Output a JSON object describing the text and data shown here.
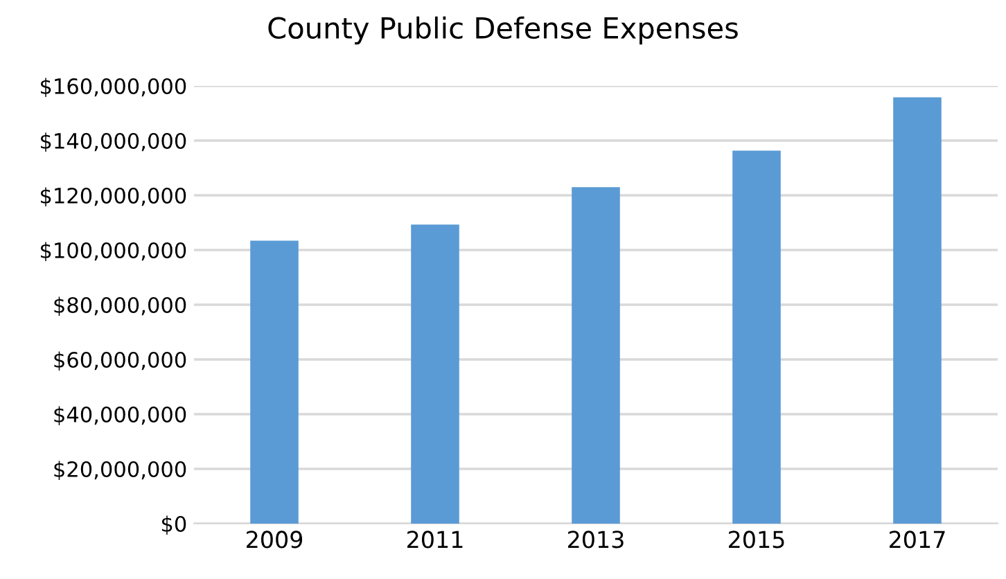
{
  "chart_data": {
    "type": "bar",
    "title": "County Public Defense Expenses",
    "categories": [
      "2009",
      "2011",
      "2013",
      "2015",
      "2017"
    ],
    "values": [
      103400000,
      109300000,
      123000000,
      136300000,
      155800000
    ],
    "color": "#5b9bd5",
    "ylim": [
      0,
      160000000
    ],
    "yticks": [
      {
        "value": 0,
        "label": "$0"
      },
      {
        "value": 20000000,
        "label": "$20,000,000"
      },
      {
        "value": 40000000,
        "label": "$40,000,000"
      },
      {
        "value": 60000000,
        "label": "$60,000,000"
      },
      {
        "value": 80000000,
        "label": "$80,000,000"
      },
      {
        "value": 100000000,
        "label": "$100,000,000"
      },
      {
        "value": 120000000,
        "label": "$120,000,000"
      },
      {
        "value": 140000000,
        "label": "$140,000,000"
      },
      {
        "value": 160000000,
        "label": "$160,000,000"
      }
    ],
    "grid": "y",
    "legend": false
  }
}
